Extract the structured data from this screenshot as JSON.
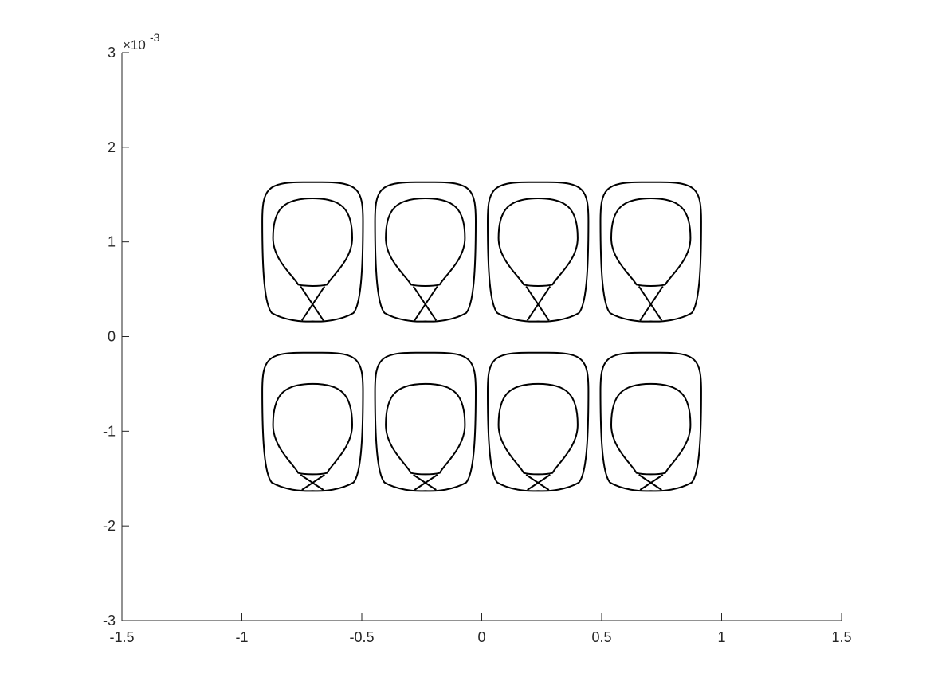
{
  "chart_data": {
    "type": "line",
    "title": "",
    "xlabel": "",
    "ylabel": "",
    "xlim": [
      -1.5,
      1.5
    ],
    "ylim": [
      -3,
      3
    ],
    "y_scale_label": "×10-3",
    "y_scale_base": "×10",
    "y_scale_exponent": "-3",
    "y_units_multiplier": 0.001,
    "x_ticks": [
      -1.5,
      -1,
      -0.5,
      0,
      0.5,
      1,
      1.5
    ],
    "x_tick_labels": [
      "-1.5",
      "-1",
      "-0.5",
      "0",
      "0.5",
      "1",
      "1.5"
    ],
    "y_ticks": [
      -3,
      -2,
      -1,
      0,
      1,
      2,
      3
    ],
    "y_tick_labels": [
      "-3",
      "-2",
      "-1",
      "0",
      "1",
      "2",
      "3"
    ],
    "grid": false,
    "line_color": "#000000",
    "cell_centers_x": [
      -0.705,
      -0.235,
      0.235,
      0.705
    ],
    "cells": [
      {
        "row": "top",
        "outer_y_range": [
          0.16,
          1.63
        ],
        "inner_y_range": [
          0.53,
          1.46
        ],
        "cross_y_range": [
          0.17,
          0.53
        ]
      },
      {
        "row": "bottom",
        "outer_y_range": [
          -1.63,
          -0.17
        ],
        "inner_y_range": [
          -1.46,
          -0.5
        ],
        "cross_y_range": [
          -1.62,
          -1.46
        ]
      }
    ],
    "outer_half_width": 0.21,
    "inner_half_width": 0.165
  }
}
